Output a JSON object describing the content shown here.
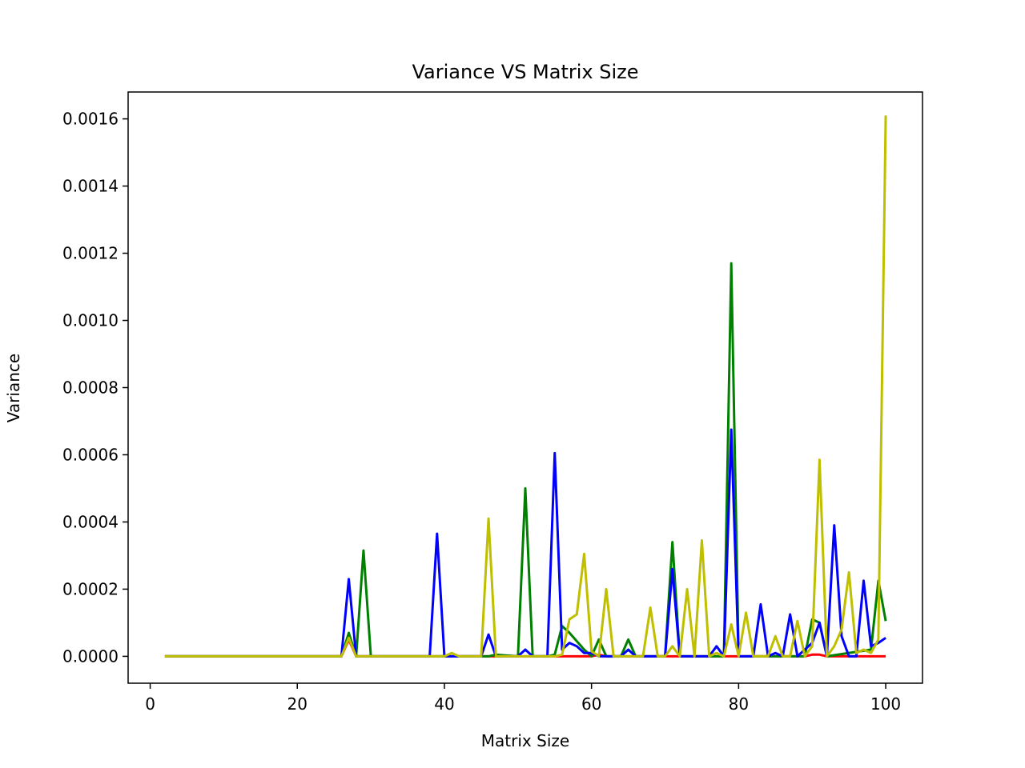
{
  "chart_data": {
    "type": "line",
    "title": "Variance VS Matrix Size",
    "xlabel": "Matrix Size",
    "ylabel": "Variance",
    "xlim": [
      -3,
      105
    ],
    "ylim": [
      -8e-05,
      0.00168
    ],
    "xticks": [
      0,
      20,
      40,
      60,
      80,
      100
    ],
    "xtick_labels": [
      "0",
      "20",
      "40",
      "60",
      "80",
      "100"
    ],
    "yticks": [
      0,
      0.0002,
      0.0004,
      0.0006,
      0.0008,
      0.001,
      0.0012,
      0.0014,
      0.0016
    ],
    "ytick_labels": [
      "0.0000",
      "0.0002",
      "0.0004",
      "0.0006",
      "0.0008",
      "0.0010",
      "0.0012",
      "0.0014",
      "0.0016"
    ],
    "grid": false,
    "series": [
      {
        "color": "#ff0000",
        "points": [
          [
            2,
            0
          ],
          [
            26,
            0
          ],
          [
            27,
            5e-05
          ],
          [
            28,
            0
          ],
          [
            60,
            0
          ],
          [
            61,
            5e-06
          ],
          [
            62,
            0
          ],
          [
            89,
            0
          ],
          [
            90,
            5e-06
          ],
          [
            91,
            5e-06
          ],
          [
            92,
            0
          ],
          [
            100,
            0
          ]
        ]
      },
      {
        "color": "#008000",
        "points": [
          [
            2,
            0
          ],
          [
            26,
            0
          ],
          [
            27,
            7e-05
          ],
          [
            28,
            0
          ],
          [
            29,
            0.000315
          ],
          [
            30,
            0
          ],
          [
            46,
            0
          ],
          [
            47,
            5e-06
          ],
          [
            50,
            0
          ],
          [
            51,
            0.0005
          ],
          [
            52,
            0
          ],
          [
            54,
            0
          ],
          [
            55,
            5e-06
          ],
          [
            56,
            9e-05
          ],
          [
            57,
            7e-05
          ],
          [
            59,
            2e-05
          ],
          [
            60,
            0
          ],
          [
            61,
            5e-05
          ],
          [
            62,
            0
          ],
          [
            64,
            0
          ],
          [
            65,
            5e-05
          ],
          [
            66,
            0
          ],
          [
            70,
            0
          ],
          [
            71,
            0.00034
          ],
          [
            72,
            0
          ],
          [
            78,
            0
          ],
          [
            79,
            0.00117
          ],
          [
            80,
            0
          ],
          [
            89,
            0
          ],
          [
            90,
            0.00011
          ],
          [
            91,
            0.0001
          ],
          [
            92,
            0
          ],
          [
            98,
            2e-05
          ],
          [
            99,
            0.000225
          ],
          [
            100,
            0.000105
          ]
        ]
      },
      {
        "color": "#0000ff",
        "points": [
          [
            2,
            0
          ],
          [
            26,
            0
          ],
          [
            27,
            0.00023
          ],
          [
            28,
            0
          ],
          [
            38,
            0
          ],
          [
            39,
            0.000365
          ],
          [
            40,
            0
          ],
          [
            45,
            0
          ],
          [
            46,
            6.5e-05
          ],
          [
            47,
            0
          ],
          [
            50,
            0
          ],
          [
            51,
            2e-05
          ],
          [
            52,
            0
          ],
          [
            54,
            0
          ],
          [
            55,
            0.000605
          ],
          [
            56,
            2e-05
          ],
          [
            57,
            4e-05
          ],
          [
            58,
            3e-05
          ],
          [
            59,
            1e-05
          ],
          [
            60,
            1e-05
          ],
          [
            61,
            0
          ],
          [
            64,
            0
          ],
          [
            65,
            2e-05
          ],
          [
            66,
            0
          ],
          [
            70,
            0
          ],
          [
            71,
            0.00026
          ],
          [
            72,
            0
          ],
          [
            76,
            0
          ],
          [
            77,
            3e-05
          ],
          [
            78,
            0
          ],
          [
            79,
            0.000675
          ],
          [
            80,
            0
          ],
          [
            82,
            0
          ],
          [
            83,
            0.000155
          ],
          [
            84,
            0
          ],
          [
            85,
            1e-05
          ],
          [
            86,
            0
          ],
          [
            87,
            0.000125
          ],
          [
            88,
            0
          ],
          [
            89,
            2e-05
          ],
          [
            90,
            4e-05
          ],
          [
            91,
            0.0001
          ],
          [
            92,
            0
          ],
          [
            93,
            0.00039
          ],
          [
            94,
            6e-05
          ],
          [
            95,
            0
          ],
          [
            96,
            0
          ],
          [
            97,
            0.000225
          ],
          [
            98,
            3e-05
          ],
          [
            99,
            4e-05
          ],
          [
            100,
            5.5e-05
          ]
        ]
      },
      {
        "color": "#bfbf00",
        "points": [
          [
            2,
            0
          ],
          [
            26,
            0
          ],
          [
            27,
            5.5e-05
          ],
          [
            28,
            0
          ],
          [
            40,
            0
          ],
          [
            41,
            1e-05
          ],
          [
            42,
            0
          ],
          [
            45,
            0
          ],
          [
            46,
            0.00041
          ],
          [
            47,
            0
          ],
          [
            55,
            0
          ],
          [
            56,
            5e-06
          ],
          [
            57,
            0.00011
          ],
          [
            58,
            0.000125
          ],
          [
            59,
            0.000305
          ],
          [
            60,
            1.5e-05
          ],
          [
            61,
            0
          ],
          [
            62,
            0.0002
          ],
          [
            63,
            0
          ],
          [
            67,
            0
          ],
          [
            68,
            0.000145
          ],
          [
            69,
            0
          ],
          [
            70,
            0
          ],
          [
            71,
            3e-05
          ],
          [
            72,
            0
          ],
          [
            73,
            0.0002
          ],
          [
            74,
            0
          ],
          [
            75,
            0.000345
          ],
          [
            76,
            0
          ],
          [
            77,
            1e-05
          ],
          [
            78,
            0
          ],
          [
            79,
            9.5e-05
          ],
          [
            80,
            0
          ],
          [
            81,
            0.00013
          ],
          [
            82,
            0
          ],
          [
            84,
            0
          ],
          [
            85,
            6e-05
          ],
          [
            86,
            0
          ],
          [
            87,
            0
          ],
          [
            88,
            0.000105
          ],
          [
            89,
            0
          ],
          [
            90,
            3e-05
          ],
          [
            91,
            0.000585
          ],
          [
            92,
            0
          ],
          [
            93,
            3e-05
          ],
          [
            94,
            8e-05
          ],
          [
            95,
            0.00025
          ],
          [
            96,
            1e-05
          ],
          [
            97,
            2e-05
          ],
          [
            98,
            1e-05
          ],
          [
            99,
            5e-05
          ],
          [
            100,
            0.00161
          ]
        ]
      }
    ]
  }
}
